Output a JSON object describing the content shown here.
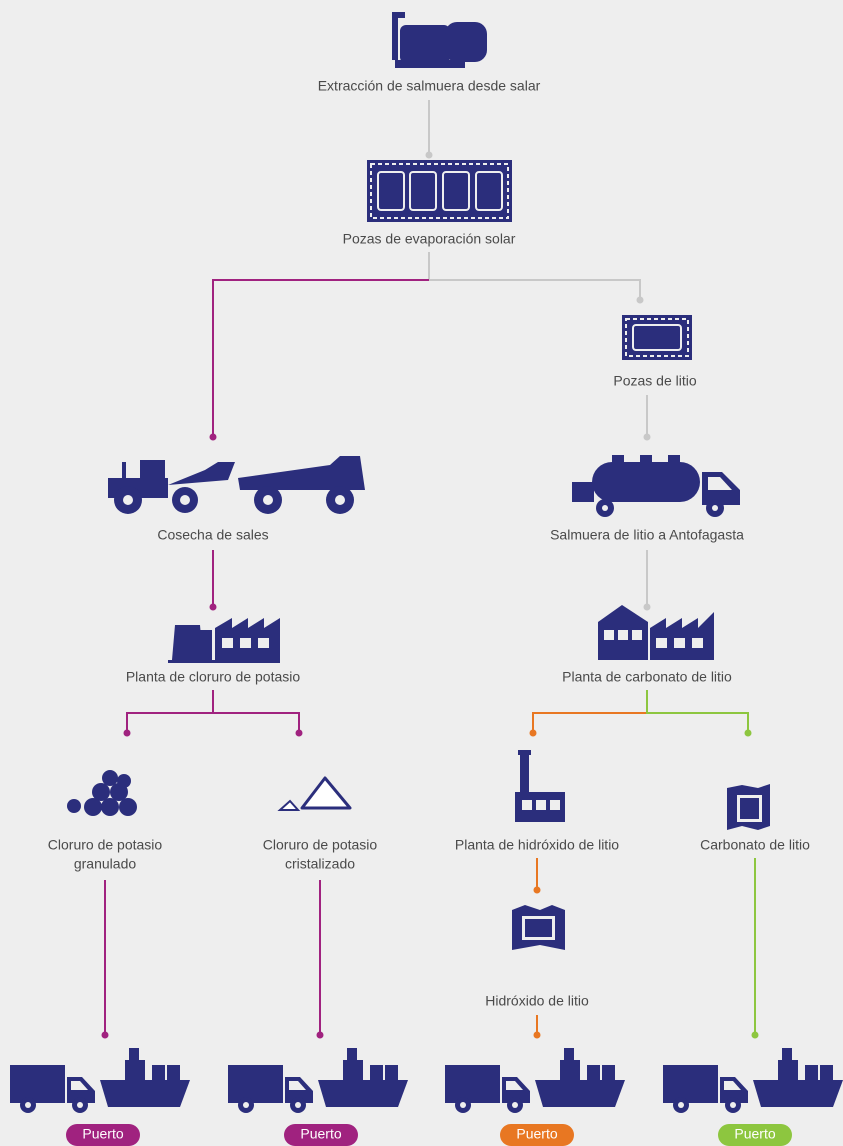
{
  "nodes": [
    {
      "lines": [
        "Extracción de salmuera desde salar"
      ]
    },
    {
      "lines": [
        "Pozas de evaporación solar"
      ]
    },
    {
      "lines": [
        "Pozas de litio"
      ]
    },
    {
      "lines": [
        "Cosecha de sales"
      ]
    },
    {
      "lines": [
        "Salmuera de litio a Antofagasta"
      ]
    },
    {
      "lines": [
        "Planta de cloruro de potasio"
      ]
    },
    {
      "lines": [
        "Planta de carbonato de litio"
      ]
    },
    {
      "lines": [
        "Cloruro de potasio",
        "granulado"
      ]
    },
    {
      "lines": [
        "Cloruro de potasio",
        "cristalizado"
      ]
    },
    {
      "lines": [
        "Planta de hidróxido de litio"
      ]
    },
    {
      "lines": [
        "Carbonato de litio"
      ]
    },
    {
      "lines": [
        "Hidróxido de litio"
      ]
    }
  ],
  "ports": [
    {
      "label": "Puerto"
    },
    {
      "label": "Puerto"
    },
    {
      "label": "Puerto"
    },
    {
      "label": "Puerto"
    }
  ]
}
